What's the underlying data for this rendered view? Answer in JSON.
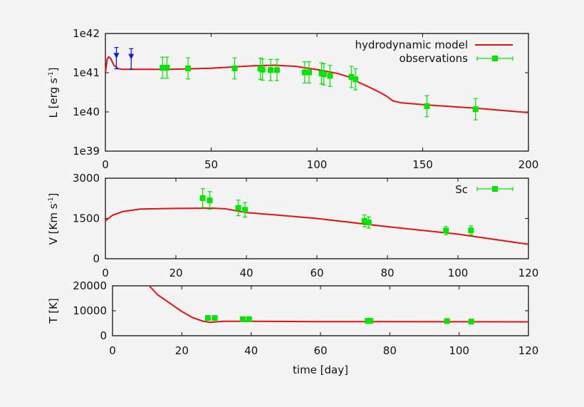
{
  "chart_data": [
    {
      "type": "line",
      "ylabel": "L [erg s-1]",
      "ylabel_parts": [
        "L [erg s",
        "-1",
        "]"
      ],
      "xlabel": "",
      "xlim": [
        0,
        200
      ],
      "ylim": [
        1e+39,
        1e+42
      ],
      "yscale": "log",
      "xticks": [
        0,
        50,
        100,
        150,
        200
      ],
      "xtick_labels": [
        "0",
        "50",
        "100",
        "150",
        "200"
      ],
      "yticks": [
        1e+39,
        1e+40,
        1e+41,
        1e+42
      ],
      "ytick_labels": [
        "1e39",
        "1e40",
        "1e41",
        "1e42"
      ],
      "legend_position": "top-right",
      "series": [
        {
          "name": "hydrodynamic model",
          "kind": "line",
          "color": "#e8100c",
          "x": [
            0,
            0.8,
            1.5,
            2.5,
            4,
            6,
            8,
            15,
            30,
            50,
            70,
            80,
            90,
            100,
            110,
            115,
            120,
            125,
            130,
            133,
            136,
            140,
            152,
            175,
            200
          ],
          "y": [
            1e+41,
            2.2e+41,
            2.55e+41,
            2.3e+41,
            1.55e+41,
            1.27e+41,
            1.22e+41,
            1.22e+41,
            1.22e+41,
            1.3e+41,
            1.5e+41,
            1.55e+41,
            1.45e+41,
            1.2e+41,
            9.5e+40,
            7.8e+40,
            5.6e+40,
            4.2e+40,
            3.1e+40,
            2.5e+40,
            1.9e+40,
            1.7e+40,
            1.5e+40,
            1.25e+40,
            9.6e+39
          ]
        },
        {
          "name": "observations",
          "kind": "errorbar",
          "color": "#00e600",
          "x": [
            27,
            29.1,
            39.1,
            61.1,
            73.3,
            74.3,
            78.1,
            81.1,
            94.2,
            96.3,
            102.2,
            103.3,
            106.2,
            116.3,
            118.2,
            152,
            175
          ],
          "y": [
            1.34e+41,
            1.34e+41,
            1.29e+41,
            1.29e+41,
            1.26e+41,
            1.2e+41,
            1.17e+41,
            1.17e+41,
            1.02e+41,
            1.02e+41,
            9.6e+40,
            9.1e+40,
            8.3e+40,
            7.8e+40,
            6.8e+40,
            1.4e+40,
            1.17e+40
          ],
          "yerr_dex": 0.27
        },
        {
          "kind": "upper-limit",
          "color": "#0a1fd6",
          "x": [
            5.2,
            12.2
          ],
          "y": [
            2.7e+41,
            2.55e+41
          ],
          "bar_top": [
            4.4e+41,
            4.1e+41
          ],
          "bar_bottom": [
            1.26e+41,
            1.24e+41
          ]
        }
      ]
    },
    {
      "type": "line",
      "ylabel": "V [Km s-1]",
      "ylabel_parts": [
        "V [Km s",
        "-1",
        "]"
      ],
      "xlabel": "",
      "xlim": [
        0,
        120
      ],
      "ylim": [
        0,
        3000
      ],
      "yscale": "linear",
      "xticks": [
        0,
        20,
        40,
        60,
        80,
        100,
        120
      ],
      "xtick_labels": [
        "0",
        "20",
        "40",
        "60",
        "80",
        "100",
        "120"
      ],
      "yticks": [
        0,
        1500,
        3000
      ],
      "ytick_labels": [
        "0",
        "1500",
        "3000"
      ],
      "legend_position": "top-right",
      "series": [
        {
          "kind": "line",
          "color": "#e8100c",
          "x": [
            0,
            2,
            5,
            10,
            20,
            30,
            34,
            40,
            50,
            60,
            80,
            100,
            120
          ],
          "y": [
            1413,
            1620,
            1760,
            1850,
            1875,
            1884,
            1860,
            1718,
            1613,
            1500,
            1195,
            916,
            540
          ]
        },
        {
          "name": "Sc",
          "kind": "errorbar",
          "color": "#00e600",
          "x": [
            27.6,
            29.6,
            37.7,
            39.6,
            73.5,
            74.7,
            96.6,
            103.7
          ],
          "y": [
            2259,
            2172,
            1892,
            1823,
            1413,
            1352,
            1047,
            1055
          ],
          "yerr": [
            350,
            330,
            290,
            270,
            220,
            210,
            150,
            170
          ]
        }
      ]
    },
    {
      "type": "line",
      "ylabel": "T [K]",
      "xlabel": "time [day]",
      "xlim": [
        0,
        120
      ],
      "ylim": [
        0,
        20000
      ],
      "yscale": "linear",
      "xticks": [
        0,
        20,
        40,
        60,
        80,
        100,
        120
      ],
      "xtick_labels": [
        "0",
        "20",
        "40",
        "60",
        "80",
        "100",
        "120"
      ],
      "yticks": [
        0,
        10000,
        20000
      ],
      "ytick_labels": [
        "0",
        "10000",
        "20000"
      ],
      "series": [
        {
          "kind": "line",
          "color": "#e8100c",
          "x": [
            10.6,
            13,
            17,
            20,
            23,
            26,
            28,
            32,
            40,
            60,
            80,
            100,
            120
          ],
          "y": [
            20000,
            16440,
            12600,
            9710,
            7300,
            5865,
            5385,
            5770,
            5770,
            5650,
            5650,
            5600,
            5580
          ]
        },
        {
          "kind": "scatter",
          "color": "#00e600",
          "x": [
            27.5,
            29.5,
            37.6,
            39.4,
            73.6,
            74.4,
            96.5,
            103.5
          ],
          "y": [
            7115,
            7115,
            6635,
            6635,
            5960,
            5960,
            5865,
            5670
          ]
        }
      ]
    }
  ]
}
